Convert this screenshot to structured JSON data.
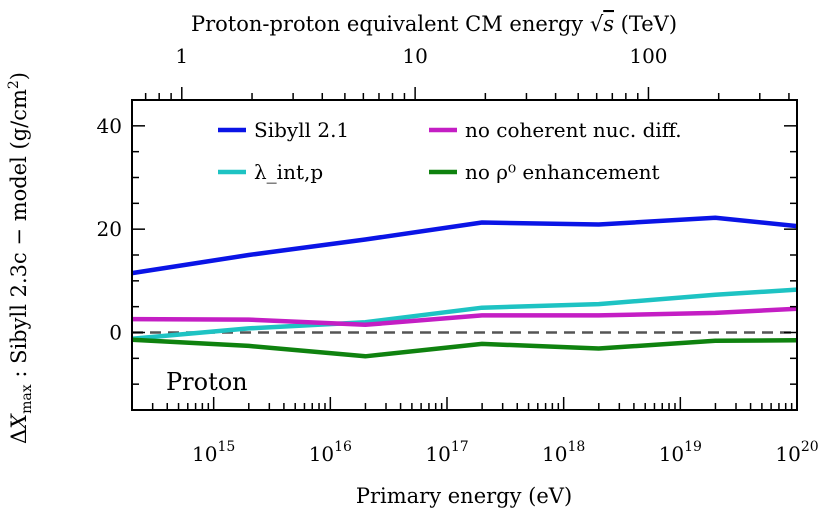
{
  "chart_data": {
    "type": "line",
    "x_scale": "log",
    "xlim_log10": [
      14.3,
      20
    ],
    "ylim": [
      -15,
      45
    ],
    "xlabel": "Primary energy (eV)",
    "ylabel": "ΔX_max : Sibyll 2.3c − model (g/cm²)",
    "top_xlabel": "Proton-proton equivalent CM energy √s (TeV)",
    "annotation": "Proton",
    "x_ticks": [
      {
        "base": "10",
        "exp": "15",
        "log10": 15
      },
      {
        "base": "10",
        "exp": "16",
        "log10": 16
      },
      {
        "base": "10",
        "exp": "17",
        "log10": 17
      },
      {
        "base": "10",
        "exp": "18",
        "log10": 18
      },
      {
        "base": "10",
        "exp": "19",
        "log10": 19
      },
      {
        "base": "10",
        "exp": "20",
        "log10": 20
      }
    ],
    "top_ticks": [
      {
        "label": "1",
        "tev": 1
      },
      {
        "label": "10",
        "tev": 10
      },
      {
        "label": "100",
        "tev": 100
      }
    ],
    "y_ticks": [
      {
        "label": "40",
        "value": 40
      },
      {
        "label": "20",
        "value": 20
      },
      {
        "label": "0",
        "value": 0
      }
    ],
    "reference_line": 0,
    "x_log10": [
      14.3,
      15.3,
      16.3,
      17.3,
      18.3,
      19.3,
      20
    ],
    "series": [
      {
        "name": "Sibyll 2.1",
        "color": "#0a14e6",
        "values": [
          11.5,
          15,
          18,
          21.3,
          20.9,
          22.2,
          20.6
        ]
      },
      {
        "name": "λ_int,p",
        "color": "#1ec3c3",
        "values": [
          -1.2,
          0.8,
          2,
          4.8,
          5.5,
          7.3,
          8.3
        ]
      },
      {
        "name": "no coherent nuc. diff.",
        "color": "#c41ec4",
        "values": [
          2.6,
          2.5,
          1.5,
          3.3,
          3.3,
          3.8,
          4.6
        ]
      },
      {
        "name": "no ρ⁰ enhancement",
        "color": "#0f820f",
        "values": [
          -1.4,
          -2.6,
          -4.6,
          -2.2,
          -3.1,
          -1.6,
          -1.5
        ]
      }
    ]
  }
}
